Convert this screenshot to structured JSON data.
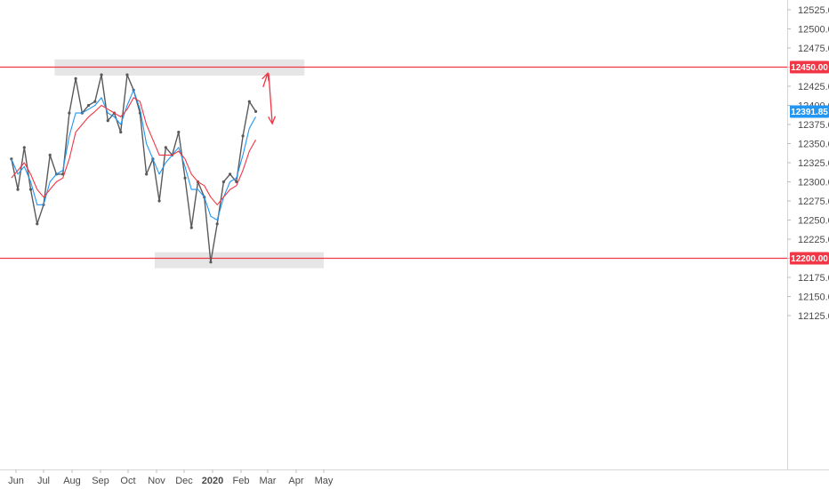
{
  "chart_data": {
    "type": "candlestick",
    "title": "",
    "xlabel": "",
    "ylabel": "",
    "ylim": [
      12100,
      12530
    ],
    "y_ticks": [
      "12525.00",
      "12500.00",
      "12475.00",
      "12450.00",
      "12425.00",
      "12400.00",
      "12375.00",
      "12350.00",
      "12325.00",
      "12300.00",
      "12275.00",
      "12250.00",
      "12225.00",
      "12200.00",
      "12175.00",
      "12150.00",
      "12125.00"
    ],
    "x_ticks": [
      "Jun",
      "Jul",
      "Aug",
      "Sep",
      "Oct",
      "Nov",
      "Dec",
      "2020",
      "Feb",
      "Mar",
      "Apr",
      "May"
    ],
    "price_tags": [
      {
        "label": "12450.00",
        "value": 12450,
        "color": "#f23645"
      },
      {
        "label": "12391.85",
        "value": 12391.85,
        "color": "#2196f3"
      },
      {
        "label": "12200.00",
        "value": 12200,
        "color": "#f23645"
      }
    ],
    "horizontal_lines": [
      {
        "value": 12450,
        "color": "#f23645"
      },
      {
        "value": 12200,
        "color": "#f23645"
      }
    ],
    "zones": [
      {
        "from_date": "2019-07-13",
        "to_date": "2020-04-10",
        "low": 12439,
        "high": 12460
      },
      {
        "from_date": "2019-10-30",
        "to_date": "2020-05-01",
        "low": 12187,
        "high": 12208
      }
    ],
    "arrows": [
      {
        "from": [
          "2020-02-25",
          12424
        ],
        "to": [
          "2020-03-01",
          12442
        ],
        "color": "#f23645"
      },
      {
        "from": [
          "2020-03-02",
          12442
        ],
        "to": [
          "2020-03-06",
          12376
        ],
        "color": "#f23645"
      }
    ],
    "series": [
      {
        "kind": "close",
        "color": "#5a5a5a",
        "points": [
          [
            "2019-05-27",
            12330
          ],
          [
            "2019-06-03",
            12290
          ],
          [
            "2019-06-10",
            12345
          ],
          [
            "2019-06-17",
            12290
          ],
          [
            "2019-06-24",
            12245
          ],
          [
            "2019-07-01",
            12270
          ],
          [
            "2019-07-08",
            12335
          ],
          [
            "2019-07-15",
            12310
          ],
          [
            "2019-07-22",
            12310
          ],
          [
            "2019-07-29",
            12390
          ],
          [
            "2019-08-05",
            12435
          ],
          [
            "2019-08-12",
            12390
          ],
          [
            "2019-08-19",
            12400
          ],
          [
            "2019-08-26",
            12405
          ],
          [
            "2019-09-02",
            12440
          ],
          [
            "2019-09-09",
            12380
          ],
          [
            "2019-09-16",
            12390
          ],
          [
            "2019-09-23",
            12365
          ],
          [
            "2019-09-30",
            12440
          ],
          [
            "2019-10-07",
            12420
          ],
          [
            "2019-10-14",
            12390
          ],
          [
            "2019-10-21",
            12310
          ],
          [
            "2019-10-28",
            12330
          ],
          [
            "2019-11-04",
            12275
          ],
          [
            "2019-11-11",
            12345
          ],
          [
            "2019-11-18",
            12335
          ],
          [
            "2019-11-25",
            12365
          ],
          [
            "2019-12-02",
            12305
          ],
          [
            "2019-12-09",
            12240
          ],
          [
            "2019-12-16",
            12300
          ],
          [
            "2019-12-23",
            12280
          ],
          [
            "2019-12-30",
            12195
          ],
          [
            "2020-01-06",
            12245
          ],
          [
            "2020-01-13",
            12300
          ],
          [
            "2020-01-20",
            12310
          ],
          [
            "2020-01-27",
            12300
          ],
          [
            "2020-02-03",
            12360
          ],
          [
            "2020-02-10",
            12405
          ],
          [
            "2020-02-17",
            12392
          ]
        ]
      },
      {
        "kind": "ema_fast",
        "color": "#2196f3",
        "points": [
          [
            "2019-05-27",
            12330
          ],
          [
            "2019-06-03",
            12310
          ],
          [
            "2019-06-10",
            12320
          ],
          [
            "2019-06-17",
            12300
          ],
          [
            "2019-06-24",
            12270
          ],
          [
            "2019-07-01",
            12270
          ],
          [
            "2019-07-08",
            12300
          ],
          [
            "2019-07-15",
            12310
          ],
          [
            "2019-07-22",
            12315
          ],
          [
            "2019-07-29",
            12360
          ],
          [
            "2019-08-05",
            12390
          ],
          [
            "2019-08-12",
            12390
          ],
          [
            "2019-08-19",
            12395
          ],
          [
            "2019-08-26",
            12400
          ],
          [
            "2019-09-02",
            12410
          ],
          [
            "2019-09-09",
            12390
          ],
          [
            "2019-09-16",
            12385
          ],
          [
            "2019-09-23",
            12375
          ],
          [
            "2019-09-30",
            12400
          ],
          [
            "2019-10-07",
            12420
          ],
          [
            "2019-10-14",
            12395
          ],
          [
            "2019-10-21",
            12350
          ],
          [
            "2019-10-28",
            12330
          ],
          [
            "2019-11-04",
            12310
          ],
          [
            "2019-11-11",
            12325
          ],
          [
            "2019-11-18",
            12335
          ],
          [
            "2019-11-25",
            12345
          ],
          [
            "2019-12-02",
            12320
          ],
          [
            "2019-12-09",
            12290
          ],
          [
            "2019-12-16",
            12290
          ],
          [
            "2019-12-23",
            12280
          ],
          [
            "2019-12-30",
            12255
          ],
          [
            "2020-01-06",
            12250
          ],
          [
            "2020-01-13",
            12280
          ],
          [
            "2020-01-20",
            12300
          ],
          [
            "2020-01-27",
            12305
          ],
          [
            "2020-02-03",
            12335
          ],
          [
            "2020-02-10",
            12370
          ],
          [
            "2020-02-17",
            12385
          ]
        ]
      },
      {
        "kind": "ema_slow",
        "color": "#f23645",
        "points": [
          [
            "2019-05-27",
            12305
          ],
          [
            "2019-06-03",
            12315
          ],
          [
            "2019-06-10",
            12325
          ],
          [
            "2019-06-17",
            12310
          ],
          [
            "2019-06-24",
            12290
          ],
          [
            "2019-07-01",
            12280
          ],
          [
            "2019-07-08",
            12290
          ],
          [
            "2019-07-15",
            12300
          ],
          [
            "2019-07-22",
            12305
          ],
          [
            "2019-07-29",
            12330
          ],
          [
            "2019-08-05",
            12365
          ],
          [
            "2019-08-12",
            12375
          ],
          [
            "2019-08-19",
            12385
          ],
          [
            "2019-08-26",
            12392
          ],
          [
            "2019-09-02",
            12400
          ],
          [
            "2019-09-09",
            12395
          ],
          [
            "2019-09-16",
            12390
          ],
          [
            "2019-09-23",
            12385
          ],
          [
            "2019-09-30",
            12395
          ],
          [
            "2019-10-07",
            12410
          ],
          [
            "2019-10-14",
            12405
          ],
          [
            "2019-10-21",
            12375
          ],
          [
            "2019-10-28",
            12355
          ],
          [
            "2019-11-04",
            12335
          ],
          [
            "2019-11-11",
            12335
          ],
          [
            "2019-11-18",
            12335
          ],
          [
            "2019-11-25",
            12340
          ],
          [
            "2019-12-02",
            12330
          ],
          [
            "2019-12-09",
            12310
          ],
          [
            "2019-12-16",
            12300
          ],
          [
            "2019-12-23",
            12295
          ],
          [
            "2019-12-30",
            12280
          ],
          [
            "2020-01-06",
            12270
          ],
          [
            "2020-01-13",
            12280
          ],
          [
            "2020-01-20",
            12290
          ],
          [
            "2020-01-27",
            12295
          ],
          [
            "2020-02-03",
            12315
          ],
          [
            "2020-02-10",
            12340
          ],
          [
            "2020-02-17",
            12355
          ]
        ]
      }
    ],
    "grid": false,
    "legend": "none"
  }
}
